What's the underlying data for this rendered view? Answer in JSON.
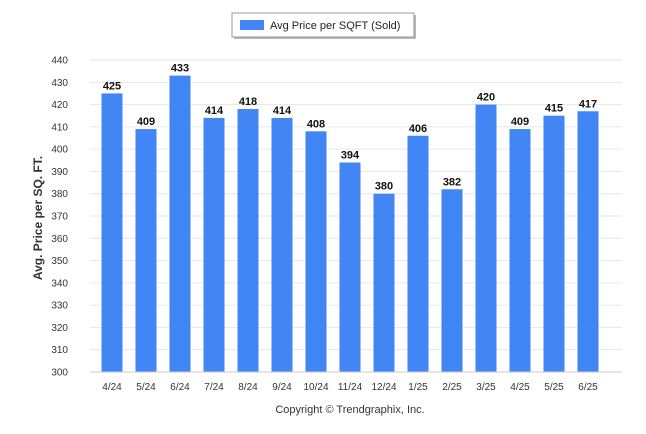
{
  "chart_data": {
    "type": "bar",
    "categories": [
      "4/24",
      "5/24",
      "6/24",
      "7/24",
      "8/24",
      "9/24",
      "10/24",
      "11/24",
      "12/24",
      "1/25",
      "2/25",
      "3/25",
      "4/25",
      "5/25",
      "6/25"
    ],
    "series": [
      {
        "name": "Avg Price per SQFT (Sold)",
        "values": [
          425,
          409,
          433,
          414,
          418,
          414,
          408,
          394,
          380,
          406,
          382,
          420,
          409,
          415,
          417
        ],
        "color": "#4285f4"
      }
    ],
    "title": "",
    "xlabel": "",
    "ylabel": "Avg. Price per SQ. FT.",
    "ylim": [
      300,
      440
    ],
    "yticks": [
      300,
      310,
      320,
      330,
      340,
      350,
      360,
      370,
      380,
      390,
      400,
      410,
      420,
      430,
      440
    ],
    "grid": true,
    "legend_position": "top-center",
    "data_labels": true
  },
  "footer": {
    "copyright": "Copyright © Trendgraphix, Inc."
  },
  "colors": {
    "bar": "#4285f4",
    "grid": "#e6e6e6",
    "axis": "#cccccc"
  }
}
